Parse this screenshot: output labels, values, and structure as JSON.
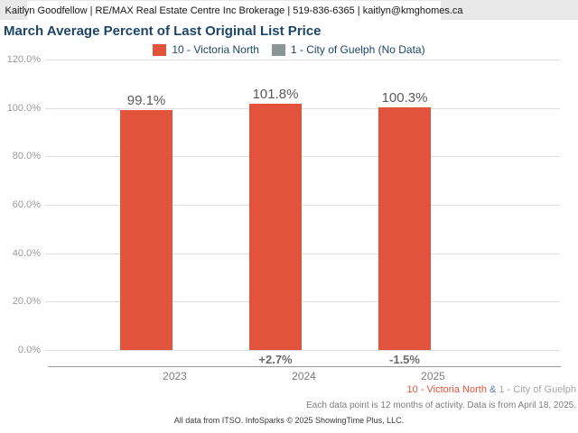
{
  "header": {
    "contact_line": "Kaitlyn Goodfellow | RE/MAX Real Estate Centre Inc Brokerage | 519-836-6365 | kaitlyn@kmghomes.ca"
  },
  "title": "March Average Percent of Last Original List Price",
  "legend": {
    "items": [
      {
        "label": "10 - Victoria North",
        "color": "#e2533b"
      },
      {
        "label": "1 - City of Guelph (No Data)",
        "color": "#8c9494"
      }
    ]
  },
  "chart_data": {
    "type": "bar",
    "title": "March Average Percent of Last Original List Price",
    "categories": [
      "2023",
      "2024",
      "2025"
    ],
    "series": [
      {
        "name": "10 - Victoria North",
        "color": "#e2533b",
        "values": [
          99.1,
          101.8,
          100.3
        ],
        "value_labels": [
          "99.1%",
          "101.8%",
          "100.3%"
        ],
        "change_labels": [
          null,
          "+2.7%",
          "-1.5%"
        ]
      },
      {
        "name": "1 - City of Guelph",
        "color": "#8c9494",
        "values": [
          null,
          null,
          null
        ],
        "note": "No Data"
      }
    ],
    "xlabel": "",
    "ylabel": "",
    "ylim": [
      0,
      120
    ],
    "ytick_step": 20,
    "ytick_labels": [
      "0.0%",
      "20.0%",
      "40.0%",
      "60.0%",
      "80.0%",
      "100.0%",
      "120.0%"
    ],
    "grid": true,
    "legend_position": "top"
  },
  "footer": {
    "series_caption": {
      "red": "10 - Victoria North",
      "red_color": "#e2533b",
      "amp": " & ",
      "amp_color": "#5b7fa6",
      "gray": "1 - City of Guelph",
      "gray_color": "#a6a6a6"
    },
    "data_note": "Each data point is 12 months of activity. Data is from April 18, 2025.",
    "copyright": "All data from ITSO. InfoSparks © 2025 ShowingTime Plus, LLC."
  }
}
